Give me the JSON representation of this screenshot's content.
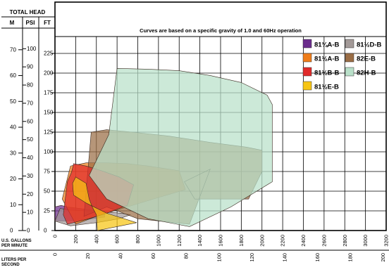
{
  "chart_data": {
    "type": "area",
    "title": "",
    "subtitle": "Curves are based on a specific gravity of 1.0 and 60Hz operation",
    "header": {
      "total_head": "TOTAL HEAD",
      "col_m": "M",
      "col_psi": "PSI",
      "col_ft": "FT"
    },
    "xlabel": "U.S. GALLONS PER MINUTE",
    "x2label": "LITERS PER SECOND",
    "xlim": [
      0,
      3200
    ],
    "ylim": [
      0,
      230
    ],
    "x_ticks": [
      0,
      200,
      400,
      600,
      800,
      1000,
      1200,
      1400,
      1600,
      1800,
      2000,
      2200,
      2400,
      2600,
      2800,
      3000,
      3200
    ],
    "x2_ticks": [
      0,
      20,
      40,
      60,
      80,
      100,
      120,
      140,
      160,
      180,
      200
    ],
    "ft_ticks": [
      0,
      25,
      50,
      75,
      100,
      125,
      150,
      175,
      200,
      225
    ],
    "psi_ticks": [
      0,
      10,
      20,
      30,
      40,
      50,
      60,
      70,
      80,
      90,
      100
    ],
    "m_ticks": [
      0,
      10,
      20,
      30,
      40,
      50,
      60,
      70
    ],
    "grid": true,
    "legend_position": "top-right",
    "series": [
      {
        "name": "81¼A-B",
        "color": "#6b2d8c",
        "x": [
          0,
          0,
          60,
          120,
          240,
          350,
          480,
          480,
          300,
          100
        ],
        "y": [
          12,
          30,
          32,
          30,
          28,
          26,
          22,
          17,
          14,
          12
        ]
      },
      {
        "name": "81½D-B",
        "color": "#a39a98",
        "x": [
          0,
          50,
          150,
          300,
          470,
          640,
          730,
          620,
          400,
          150
        ],
        "y": [
          12,
          28,
          26,
          25,
          24,
          22,
          20,
          15,
          10,
          6
        ]
      },
      {
        "name": "81½A-B",
        "color": "#ef7d1a",
        "x": [
          70,
          150,
          300,
          500,
          700,
          900,
          1200,
          1260,
          1000,
          700,
          400,
          200
        ],
        "y": [
          40,
          82,
          86,
          86,
          85,
          82,
          76,
          52,
          42,
          30,
          18,
          8
        ]
      },
      {
        "name": "82E-B",
        "color": "#9a6d45",
        "x": [
          280,
          350,
          500,
          750,
          1100,
          1500,
          1850,
          2000,
          2000,
          1870,
          1350,
          1250,
          1500,
          1300,
          800,
          500
        ],
        "y": [
          18,
          125,
          128,
          125,
          120,
          112,
          106,
          102,
          75,
          40,
          40,
          62,
          78,
          8,
          15,
          30
        ]
      },
      {
        "name": "81½B-B",
        "color": "#e02a2a",
        "x": [
          80,
          120,
          160,
          180,
          300,
          450,
          620,
          760,
          700,
          500,
          300,
          120
        ],
        "y": [
          20,
          62,
          74,
          85,
          82,
          76,
          68,
          58,
          32,
          22,
          14,
          8
        ]
      },
      {
        "name": "82H-B",
        "color": "#b9e0c9",
        "x": [
          330,
          520,
          600,
          900,
          1200,
          1500,
          1800,
          2050,
          2100,
          2100,
          1700,
          1300,
          900,
          500
        ],
        "y": [
          70,
          122,
          206,
          205,
          203,
          197,
          188,
          172,
          160,
          62,
          30,
          5,
          15,
          40
        ]
      },
      {
        "name": "81½E-B",
        "color": "#f6c514",
        "x": [
          170,
          200,
          300,
          330,
          360,
          400,
          410,
          600,
          790,
          500,
          300,
          180
        ],
        "y": [
          60,
          68,
          60,
          40,
          30,
          20,
          0,
          5,
          10,
          22,
          35,
          45
        ]
      }
    ]
  }
}
